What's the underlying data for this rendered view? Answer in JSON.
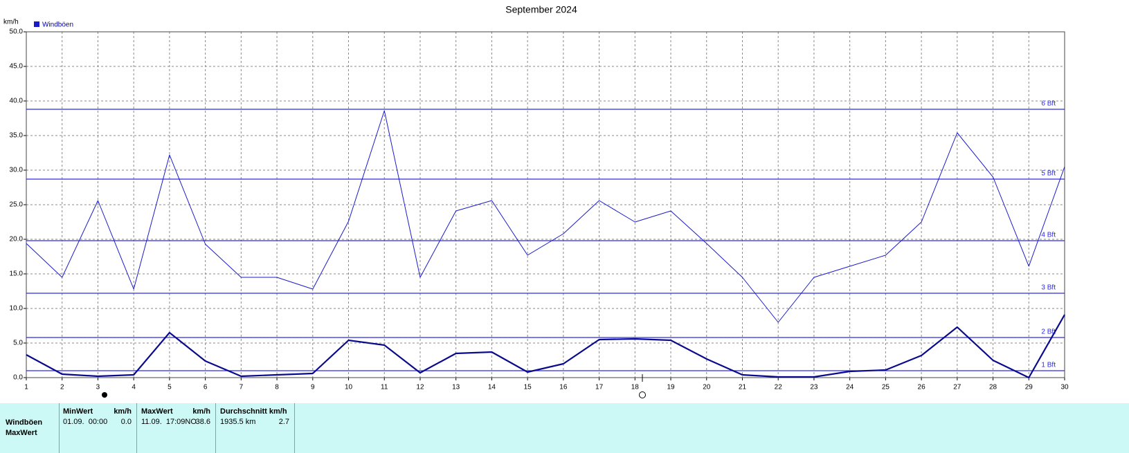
{
  "chart_data": {
    "type": "line",
    "title": "September 2024",
    "y_label": "km/h",
    "x": [
      1,
      2,
      3,
      4,
      5,
      6,
      7,
      8,
      9,
      10,
      11,
      12,
      13,
      14,
      15,
      16,
      17,
      18,
      19,
      20,
      21,
      22,
      23,
      24,
      25,
      26,
      27,
      28,
      29,
      30
    ],
    "xlim": [
      1,
      30
    ],
    "xticks": [
      1,
      2,
      3,
      4,
      5,
      6,
      7,
      8,
      9,
      10,
      11,
      12,
      13,
      14,
      15,
      16,
      17,
      18,
      19,
      20,
      21,
      22,
      23,
      24,
      25,
      26,
      27,
      28,
      29,
      30
    ],
    "ylim": [
      0,
      50
    ],
    "yticks": [
      {
        "value": 0,
        "label": "0.0"
      },
      {
        "value": 5,
        "label": "5.0"
      },
      {
        "value": 10,
        "label": "10.0"
      },
      {
        "value": 15,
        "label": "15.0"
      },
      {
        "value": 20,
        "label": "20.0"
      },
      {
        "value": 25,
        "label": "25.0"
      },
      {
        "value": 30,
        "label": "30.0"
      },
      {
        "value": 35,
        "label": "35.0"
      },
      {
        "value": 40,
        "label": "40.0"
      },
      {
        "value": 45,
        "label": "45.0"
      },
      {
        "value": 50,
        "label": "50.0"
      }
    ],
    "grid": true,
    "legend": "top-left",
    "series": [
      {
        "name": "Windböen",
        "color": "#1a1acc",
        "width": 1,
        "values": [
          19.4,
          14.5,
          25.6,
          12.8,
          32.2,
          19.3,
          14.5,
          14.5,
          12.8,
          22.6,
          38.6,
          14.5,
          24.1,
          25.6,
          17.7,
          20.8,
          25.6,
          22.5,
          24.1,
          19.4,
          14.5,
          8.0,
          14.5,
          16.1,
          17.7,
          22.5,
          35.4,
          29.0,
          16.1,
          30.5
        ]
      },
      {
        "color": "#0a0a8c",
        "width": 2.2,
        "values": [
          3.3,
          0.5,
          0.2,
          0.4,
          6.5,
          2.4,
          0.2,
          0.4,
          0.6,
          5.4,
          4.7,
          0.7,
          3.5,
          3.7,
          0.8,
          2.0,
          5.5,
          5.6,
          5.4,
          2.7,
          0.4,
          0.1,
          0.1,
          0.9,
          1.1,
          3.2,
          7.3,
          2.5,
          0.0,
          9.1
        ]
      }
    ],
    "reference_lines": {
      "color": "#2a2ae0",
      "lines": [
        {
          "value": 1.0,
          "label": "1 Bft"
        },
        {
          "value": 5.8,
          "label": "2 Bft"
        },
        {
          "value": 12.2,
          "label": "3 Bft"
        },
        {
          "value": 19.8,
          "label": "4 Bft"
        },
        {
          "value": 28.7,
          "label": "5 Bft"
        },
        {
          "value": 38.8,
          "label": "6 Bft"
        }
      ]
    }
  },
  "table": {
    "columns": [
      "MinWert",
      "km/h",
      "MaxWert",
      "km/h",
      "Durchschnitt km/h"
    ],
    "rows": [
      {
        "label": "Windböen",
        "cells": [
          "01.09.  00:00",
          "0.0",
          "11.09.  17:09NO",
          "38.6",
          "1935.5 km",
          "2.7"
        ]
      },
      {
        "label": "MaxWert"
      }
    ]
  }
}
